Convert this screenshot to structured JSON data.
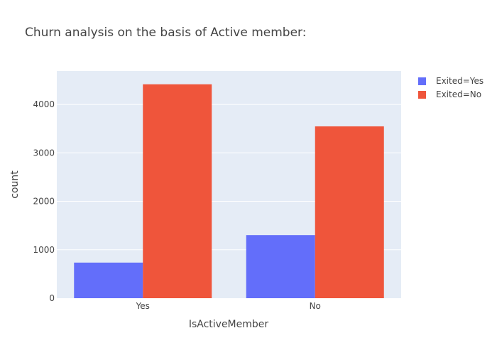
{
  "chart_data": {
    "type": "bar",
    "title": "Churn analysis on the basis of Active member:",
    "xlabel": "IsActiveMember",
    "ylabel": "count",
    "categories": [
      "Yes",
      "No"
    ],
    "series": [
      {
        "name": "Exited=Yes",
        "color": "#636efa",
        "values": [
          735,
          1302
        ]
      },
      {
        "name": "Exited=No",
        "color": "#ef553b",
        "values": [
          4416,
          3547
        ]
      }
    ],
    "ylim": [
      0,
      4690
    ],
    "yticks": [
      0,
      1000,
      2000,
      3000,
      4000
    ],
    "ytick_labels": [
      "0",
      "1000",
      "2000",
      "3000",
      "4000"
    ],
    "grid": true,
    "legend_position": "top-right",
    "plot_background": "#e5ecf6"
  }
}
